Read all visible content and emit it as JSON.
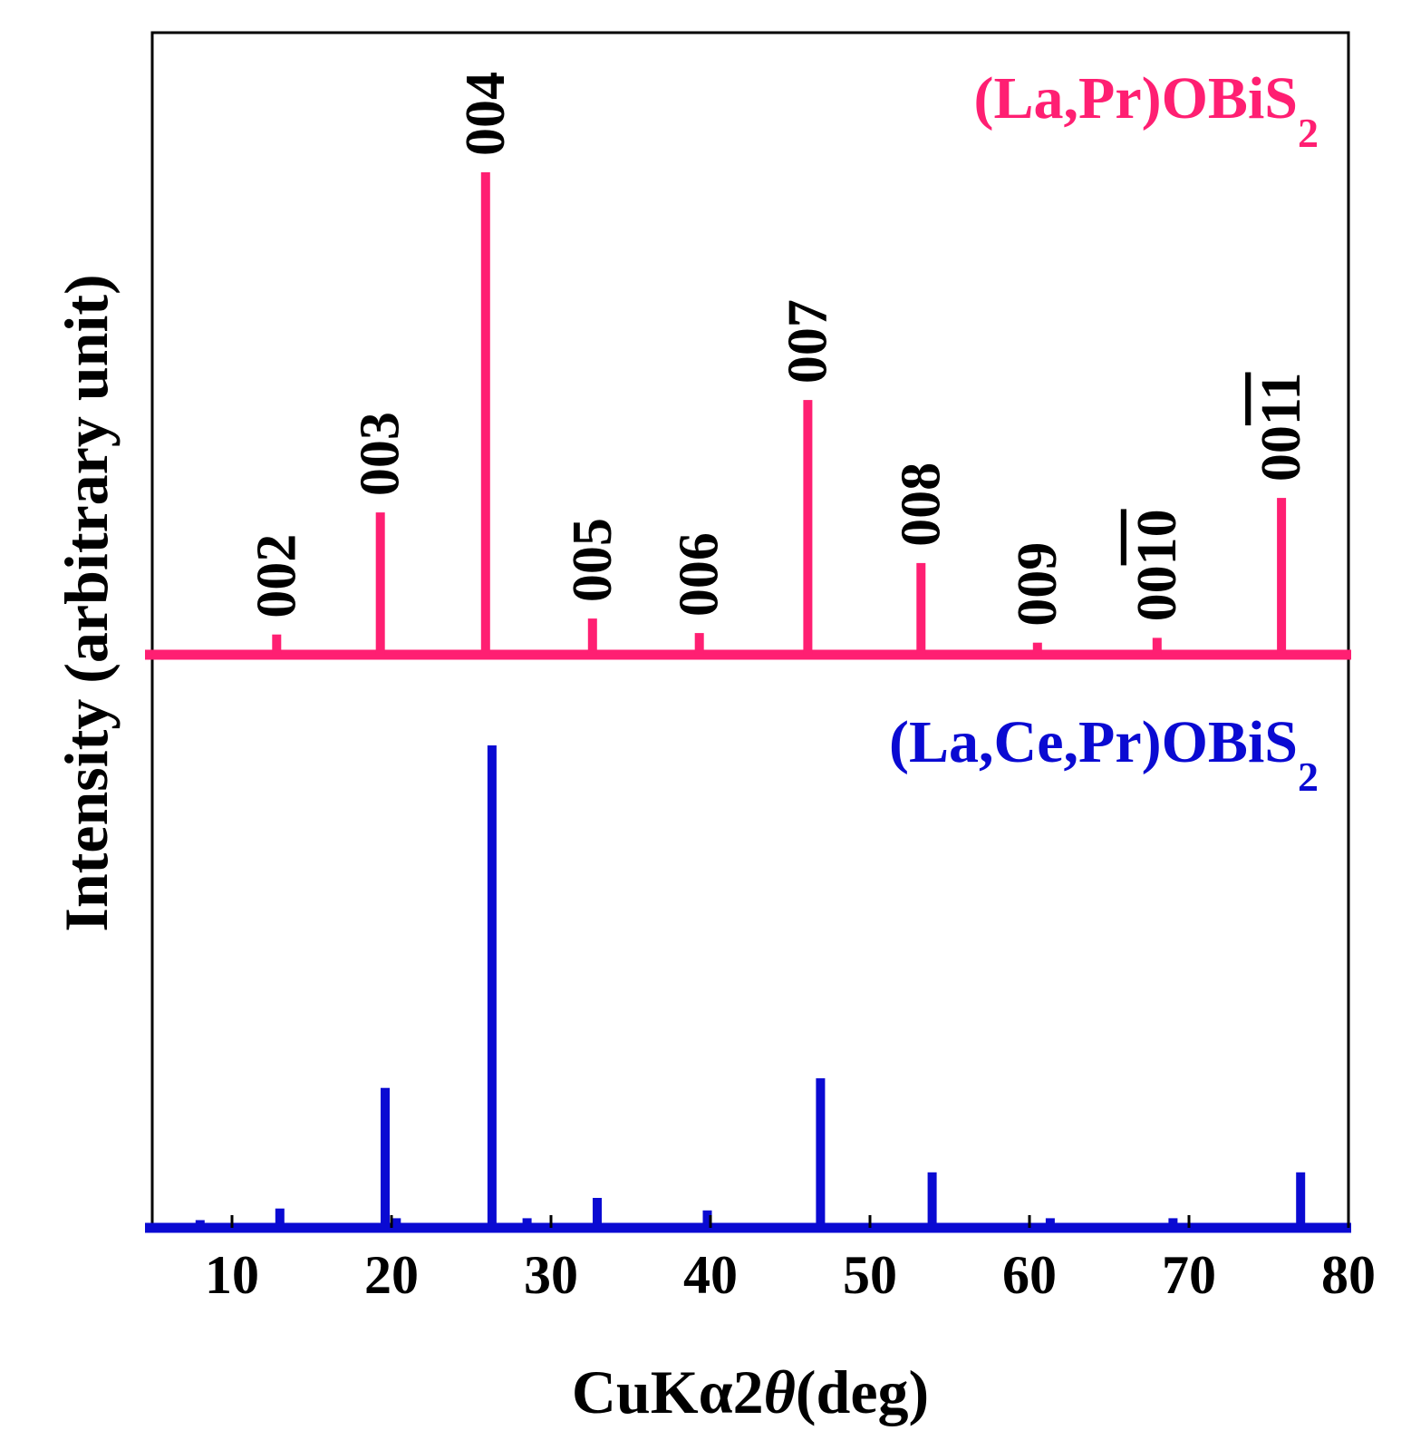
{
  "chart_data": {
    "type": "line",
    "xlabel": "CuKα2θ(deg)",
    "xlabel_parts": {
      "pre": "CuKα2",
      "theta": "θ",
      "post": "(deg)"
    },
    "ylabel": "Intensity (arbitrary unit)",
    "xlim": [
      5,
      80
    ],
    "x_ticks": [
      10,
      20,
      30,
      40,
      50,
      60,
      70,
      80
    ],
    "y_ticks": [],
    "grid": false,
    "series": [
      {
        "name": "(La,Pr)OBiS2",
        "label_main": "(La,Pr)OBiS",
        "label_sub": "2",
        "color": "#ff1f72",
        "peaks": [
          {
            "x": 12.8,
            "y": 4.2
          },
          {
            "x": 19.3,
            "y": 29.5
          },
          {
            "x": 25.9,
            "y": 100
          },
          {
            "x": 32.6,
            "y": 7.5
          },
          {
            "x": 39.3,
            "y": 4.5
          },
          {
            "x": 46.1,
            "y": 52.8
          },
          {
            "x": 53.2,
            "y": 19.0
          },
          {
            "x": 60.5,
            "y": 2.5
          },
          {
            "x": 68.0,
            "y": 3.5
          },
          {
            "x": 75.8,
            "y": 32.5
          }
        ]
      },
      {
        "name": "(La,Ce,Pr)OBiS2",
        "label_main": "(La,Ce,Pr)OBiS",
        "label_sub": "2",
        "color": "#0a0ad2",
        "peaks": [
          {
            "x": 8.0,
            "y": 1.6
          },
          {
            "x": 13.0,
            "y": 4.0
          },
          {
            "x": 19.6,
            "y": 29.0
          },
          {
            "x": 20.3,
            "y": 2.0
          },
          {
            "x": 26.3,
            "y": 100
          },
          {
            "x": 28.5,
            "y": 2.0
          },
          {
            "x": 32.9,
            "y": 6.2
          },
          {
            "x": 39.8,
            "y": 3.6
          },
          {
            "x": 46.9,
            "y": 31.0
          },
          {
            "x": 53.9,
            "y": 11.5
          },
          {
            "x": 61.3,
            "y": 2.0
          },
          {
            "x": 69.0,
            "y": 2.0
          },
          {
            "x": 77.0,
            "y": 11.5
          }
        ]
      }
    ],
    "peak_labels": [
      {
        "x": 12.8,
        "text": "002"
      },
      {
        "x": 19.3,
        "text": "003"
      },
      {
        "x": 25.9,
        "text": "004"
      },
      {
        "x": 32.6,
        "text": "005"
      },
      {
        "x": 39.3,
        "text": "006"
      },
      {
        "x": 46.1,
        "text": "007"
      },
      {
        "x": 53.2,
        "text": "008"
      },
      {
        "x": 60.5,
        "text": "009"
      },
      {
        "x": 68.0,
        "text": "0010",
        "overline_digits": 2
      },
      {
        "x": 75.8,
        "text": "0011",
        "overline_digits": 2
      }
    ]
  }
}
